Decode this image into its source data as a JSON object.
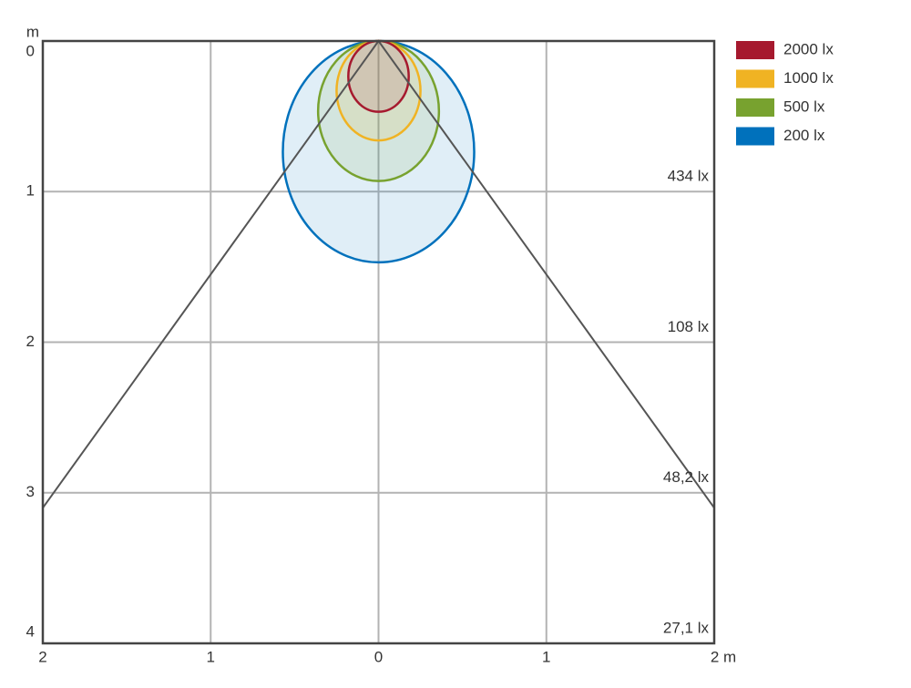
{
  "chart_data": {
    "type": "isolux",
    "y_label": "m",
    "xlim": [
      -2,
      2
    ],
    "ylim": [
      0,
      4
    ],
    "xticks": [
      {
        "value": -2,
        "label": "2"
      },
      {
        "value": -1,
        "label": "1"
      },
      0,
      1,
      {
        "value": 2,
        "label": "2 m"
      }
    ],
    "yticks": [
      0,
      1,
      2,
      3,
      4
    ],
    "grid": true,
    "series": [
      {
        "name": "2000 lx",
        "color": "#a6192e",
        "half_width": 0.18,
        "depth": 0.47
      },
      {
        "name": "1000 lx",
        "color": "#f0b323",
        "half_width": 0.25,
        "depth": 0.66
      },
      {
        "name": "500 lx",
        "color": "#78a22f",
        "half_width": 0.36,
        "depth": 0.93
      },
      {
        "name": "200 lx",
        "color": "#0071bc",
        "half_width": 0.57,
        "depth": 1.47
      }
    ],
    "beam": {
      "x": [
        -2,
        0,
        2
      ],
      "y": [
        3.1,
        0,
        3.1
      ],
      "color": "#555555"
    },
    "illuminance": {
      "depths": [
        1,
        2,
        3,
        4
      ],
      "values": [
        434,
        108,
        48.2,
        27.1
      ],
      "value_labels": [
        "434 lx",
        "108 lx",
        "48,2 lx",
        "27,1 lx"
      ]
    }
  }
}
